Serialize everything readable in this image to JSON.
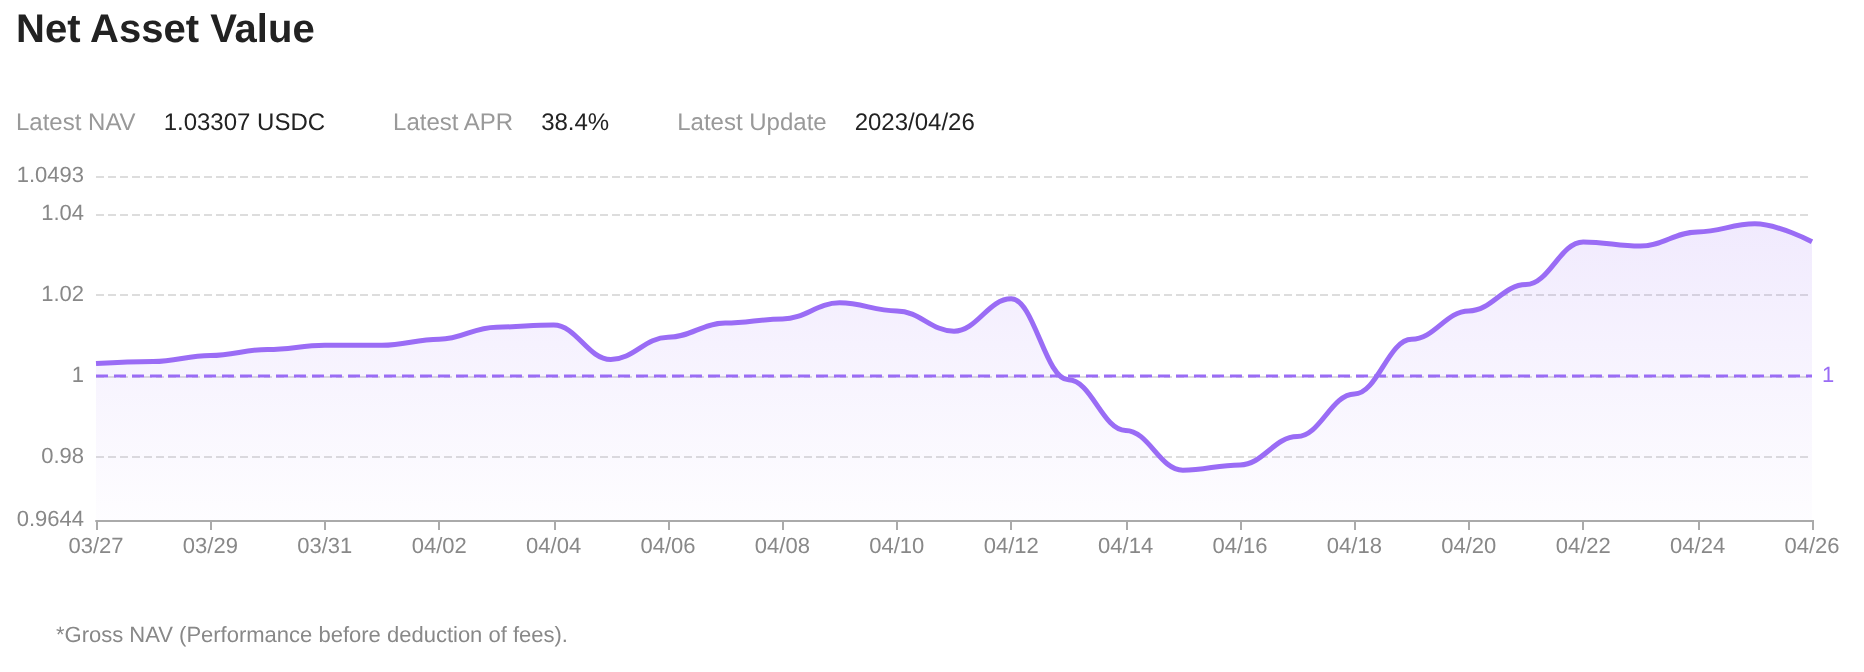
{
  "chart_data": {
    "type": "area",
    "title": "Net Asset Value",
    "annotations": [
      "Latest NAV",
      "1.03307 USDC",
      "Latest APR",
      "38.4%",
      "Latest Update",
      "2023/04/26",
      "*Gross NAV (Performance before deduction of fees)."
    ],
    "categories": [
      "03/27",
      null,
      "03/29",
      null,
      "03/31",
      null,
      "04/02",
      null,
      "04/04",
      null,
      "04/06",
      null,
      "04/08",
      null,
      "04/10",
      null,
      "04/12",
      null,
      "04/14",
      null,
      "04/16",
      null,
      "04/18",
      null,
      "04/20",
      null,
      "04/22",
      null,
      "04/24",
      null,
      "04/26"
    ],
    "series": [
      {
        "color": "#9a6cf5",
        "values": [
          1.003,
          1.0035,
          1.005,
          1.0065,
          1.0075,
          1.0075,
          1.009,
          1.012,
          1.0125,
          1.004,
          1.0095,
          1.013,
          1.014,
          1.018,
          1.016,
          1.011,
          1.019,
          0.999,
          0.9865,
          0.9767,
          0.978,
          0.985,
          0.9955,
          1.009,
          1.016,
          1.0225,
          1.033,
          1.032,
          1.0355,
          1.0375,
          1.03307
        ]
      }
    ],
    "ylim": [
      0.9644,
      1.0493
    ],
    "yticks": [
      0.9644,
      0.98,
      1,
      1.02,
      1.04,
      1.0493
    ],
    "grid": "y",
    "ref_lines": [
      {
        "axis": "y",
        "value": 1,
        "label": "1",
        "color": "#9a6cf5",
        "line_style": "dashed"
      }
    ]
  }
}
